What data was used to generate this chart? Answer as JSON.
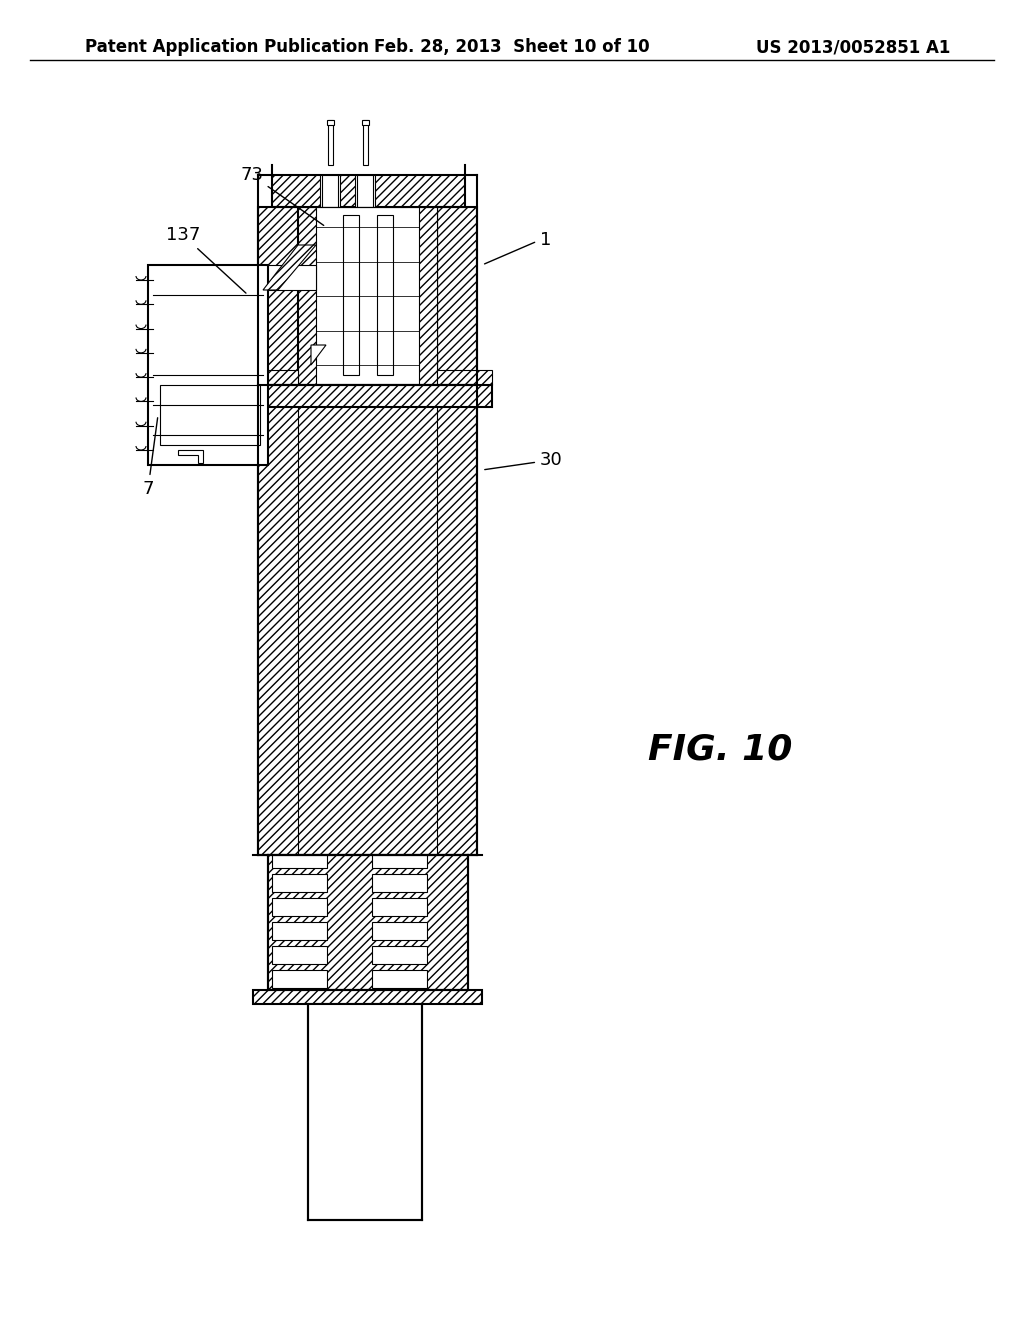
{
  "bg_color": "#ffffff",
  "line_color": "#000000",
  "header_left": "Patent Application Publication",
  "header_mid": "Feb. 28, 2013  Sheet 10 of 10",
  "header_right": "US 2013/0052851 A1",
  "fig_label": "FIG. 10",
  "font_size_header": 12,
  "font_size_label": 13,
  "font_size_fig": 26
}
